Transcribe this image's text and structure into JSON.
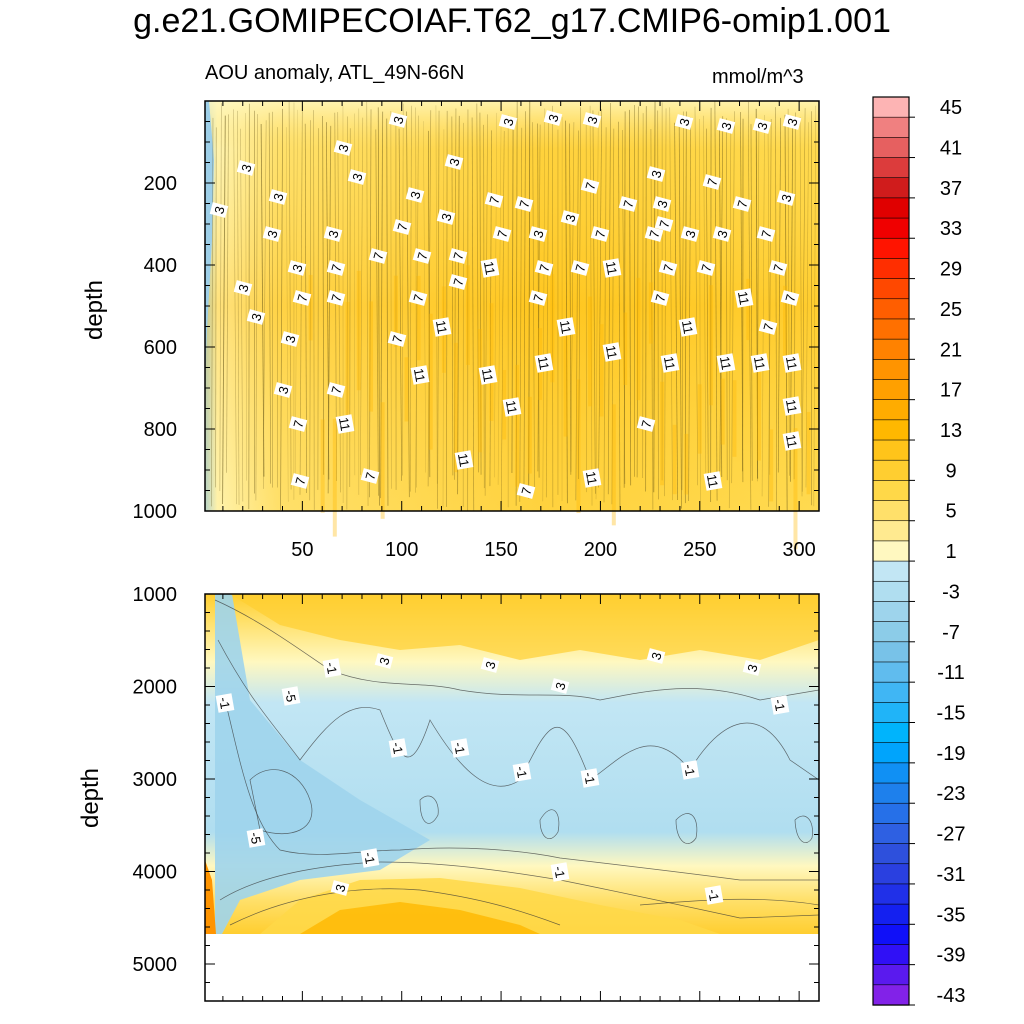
{
  "title": "g.e21.GOMIPECOIAF.T62_g17.CMIP6-omip1.001",
  "subtitle_left": "AOU anomaly, ATL_49N-66N",
  "subtitle_right": "mmol/m^3",
  "chart_data": [
    {
      "type": "heatmap",
      "panel": "upper",
      "ylabel": "depth",
      "xlabel": "",
      "xlim": [
        1,
        310
      ],
      "ylim": [
        1000,
        0
      ],
      "x_ticks": [
        50,
        100,
        150,
        200,
        250,
        300
      ],
      "x_tick_labels": [
        "50",
        "100",
        "150",
        "200",
        "250",
        "300"
      ],
      "y_ticks": [
        200,
        400,
        600,
        800,
        1000
      ],
      "y_tick_labels": [
        "200",
        "400",
        "600",
        "800",
        "1000"
      ],
      "contour_labels": [
        "3",
        "7",
        "11"
      ],
      "typical_values": {
        "near_surface": 3,
        "interior": 7,
        "max": 11,
        "left_edge": -3
      }
    },
    {
      "type": "heatmap",
      "panel": "lower",
      "ylabel": "depth",
      "xlabel": "",
      "xlim": [
        1,
        310
      ],
      "ylim": [
        5400,
        1000
      ],
      "y_ticks": [
        1000,
        2000,
        3000,
        4000,
        5000
      ],
      "y_tick_labels": [
        "1000",
        "2000",
        "3000",
        "4000",
        "5000"
      ],
      "contour_labels": [
        "-5",
        "-1",
        "3"
      ],
      "ocean_floor_depth": 4650,
      "typical_values": {
        "upper_layer": 3,
        "mid_depth": -1,
        "mid_depth_min": -5,
        "deep_layer": 3
      }
    }
  ],
  "colorbar": {
    "levels": [
      45,
      43,
      41,
      39,
      37,
      35,
      33,
      31,
      29,
      27,
      25,
      23,
      21,
      19,
      17,
      15,
      13,
      11,
      9,
      7,
      5,
      3,
      1,
      -1,
      -3,
      -5,
      -7,
      -9,
      -11,
      -13,
      -15,
      -17,
      -19,
      -21,
      -23,
      -25,
      -27,
      -29,
      -31,
      -33,
      -35,
      -37,
      -39,
      -41,
      -43
    ],
    "tick_labels": [
      "45",
      "41",
      "37",
      "33",
      "29",
      "25",
      "21",
      "17",
      "13",
      "9",
      "5",
      "1",
      "-3",
      "-7",
      "-11",
      "-15",
      "-19",
      "-23",
      "-27",
      "-31",
      "-35",
      "-39",
      "-43"
    ],
    "colors": [
      "#fdb4b4",
      "#f08080",
      "#e66060",
      "#dc3c3c",
      "#d01c1c",
      "#e00000",
      "#f00000",
      "#ff1400",
      "#ff2e00",
      "#ff4800",
      "#ff5e00",
      "#ff7000",
      "#ff8200",
      "#ff9400",
      "#ffa000",
      "#ffac00",
      "#ffb800",
      "#ffc41a",
      "#ffce30",
      "#ffd848",
      "#ffe06a",
      "#ffea90",
      "#fff8c0",
      "#c2e6f4",
      "#b0def0",
      "#9ed4ec",
      "#8ccce8",
      "#78c2e8",
      "#60bcee",
      "#40b6f4",
      "#20b4f8",
      "#00b4fc",
      "#00a4fc",
      "#1090f4",
      "#1e80ec",
      "#2670e8",
      "#2e60e2",
      "#2e50dc",
      "#2a40e0",
      "#2030e8",
      "#1420f0",
      "#1010f8",
      "#3010f6",
      "#5a1aee",
      "#8222e8"
    ]
  },
  "upper_labels": [
    {
      "t": "3",
      "x": 398,
      "y": 120
    },
    {
      "t": "3",
      "x": 508,
      "y": 122
    },
    {
      "t": "3",
      "x": 553,
      "y": 118
    },
    {
      "t": "3",
      "x": 592,
      "y": 120
    },
    {
      "t": "3",
      "x": 684,
      "y": 122
    },
    {
      "t": "3",
      "x": 726,
      "y": 126
    },
    {
      "t": "3",
      "x": 762,
      "y": 126
    },
    {
      "t": "3",
      "x": 792,
      "y": 122
    },
    {
      "t": "3",
      "x": 343,
      "y": 148
    },
    {
      "t": "3",
      "x": 454,
      "y": 162
    },
    {
      "t": "3",
      "x": 246,
      "y": 168
    },
    {
      "t": "3",
      "x": 357,
      "y": 177
    },
    {
      "t": "3",
      "x": 656,
      "y": 174
    },
    {
      "t": "7",
      "x": 712,
      "y": 182
    },
    {
      "t": "7",
      "x": 590,
      "y": 186
    },
    {
      "t": "3",
      "x": 278,
      "y": 197
    },
    {
      "t": "3",
      "x": 415,
      "y": 195
    },
    {
      "t": "7",
      "x": 494,
      "y": 200
    },
    {
      "t": "7",
      "x": 524,
      "y": 204
    },
    {
      "t": "7",
      "x": 628,
      "y": 204
    },
    {
      "t": "3",
      "x": 662,
      "y": 204
    },
    {
      "t": "7",
      "x": 742,
      "y": 204
    },
    {
      "t": "3",
      "x": 786,
      "y": 198
    },
    {
      "t": "3",
      "x": 219,
      "y": 210
    },
    {
      "t": "3",
      "x": 446,
      "y": 217
    },
    {
      "t": "3",
      "x": 570,
      "y": 218
    },
    {
      "t": "7",
      "x": 402,
      "y": 227
    },
    {
      "t": "7",
      "x": 664,
      "y": 224
    },
    {
      "t": "3",
      "x": 272,
      "y": 234
    },
    {
      "t": "3",
      "x": 333,
      "y": 234
    },
    {
      "t": "7",
      "x": 502,
      "y": 234
    },
    {
      "t": "3",
      "x": 538,
      "y": 234
    },
    {
      "t": "7",
      "x": 600,
      "y": 234
    },
    {
      "t": "7",
      "x": 654,
      "y": 234
    },
    {
      "t": "3",
      "x": 690,
      "y": 234
    },
    {
      "t": "3",
      "x": 722,
      "y": 234
    },
    {
      "t": "7",
      "x": 766,
      "y": 234
    },
    {
      "t": "7",
      "x": 378,
      "y": 256
    },
    {
      "t": "7",
      "x": 422,
      "y": 256
    },
    {
      "t": "7",
      "x": 458,
      "y": 256
    },
    {
      "t": "3",
      "x": 297,
      "y": 268
    },
    {
      "t": "7",
      "x": 336,
      "y": 268
    },
    {
      "t": "11",
      "x": 490,
      "y": 268
    },
    {
      "t": "7",
      "x": 544,
      "y": 268
    },
    {
      "t": "7",
      "x": 580,
      "y": 268
    },
    {
      "t": "11",
      "x": 612,
      "y": 268
    },
    {
      "t": "7",
      "x": 668,
      "y": 268
    },
    {
      "t": "7",
      "x": 706,
      "y": 268
    },
    {
      "t": "7",
      "x": 778,
      "y": 268
    },
    {
      "t": "7",
      "x": 458,
      "y": 282
    },
    {
      "t": "3",
      "x": 243,
      "y": 288
    },
    {
      "t": "7",
      "x": 302,
      "y": 298
    },
    {
      "t": "7",
      "x": 336,
      "y": 298
    },
    {
      "t": "7",
      "x": 418,
      "y": 298
    },
    {
      "t": "7",
      "x": 538,
      "y": 298
    },
    {
      "t": "7",
      "x": 660,
      "y": 298
    },
    {
      "t": "11",
      "x": 744,
      "y": 298
    },
    {
      "t": "7",
      "x": 790,
      "y": 298
    },
    {
      "t": "3",
      "x": 256,
      "y": 317
    },
    {
      "t": "11",
      "x": 442,
      "y": 327
    },
    {
      "t": "11",
      "x": 566,
      "y": 327
    },
    {
      "t": "11",
      "x": 688,
      "y": 327
    },
    {
      "t": "7",
      "x": 768,
      "y": 327
    },
    {
      "t": "3",
      "x": 290,
      "y": 339
    },
    {
      "t": "7",
      "x": 397,
      "y": 339
    },
    {
      "t": "11",
      "x": 612,
      "y": 352
    },
    {
      "t": "11",
      "x": 544,
      "y": 363
    },
    {
      "t": "11",
      "x": 670,
      "y": 363
    },
    {
      "t": "11",
      "x": 726,
      "y": 363
    },
    {
      "t": "11",
      "x": 760,
      "y": 363
    },
    {
      "t": "11",
      "x": 792,
      "y": 363
    },
    {
      "t": "11",
      "x": 420,
      "y": 375
    },
    {
      "t": "11",
      "x": 488,
      "y": 375
    },
    {
      "t": "3",
      "x": 283,
      "y": 390
    },
    {
      "t": "7",
      "x": 336,
      "y": 390
    },
    {
      "t": "11",
      "x": 512,
      "y": 407
    },
    {
      "t": "11",
      "x": 792,
      "y": 406
    },
    {
      "t": "7",
      "x": 298,
      "y": 424
    },
    {
      "t": "11",
      "x": 345,
      "y": 424
    },
    {
      "t": "7",
      "x": 646,
      "y": 424
    },
    {
      "t": "11",
      "x": 792,
      "y": 441
    },
    {
      "t": "11",
      "x": 464,
      "y": 460
    },
    {
      "t": "7",
      "x": 370,
      "y": 476
    },
    {
      "t": "11",
      "x": 592,
      "y": 478
    },
    {
      "t": "11",
      "x": 713,
      "y": 481
    },
    {
      "t": "7",
      "x": 300,
      "y": 481
    },
    {
      "t": "7",
      "x": 526,
      "y": 491
    }
  ],
  "lower_labels": [
    {
      "t": "-1",
      "x": 332,
      "y": 668
    },
    {
      "t": "3",
      "x": 384,
      "y": 661
    },
    {
      "t": "3",
      "x": 490,
      "y": 665
    },
    {
      "t": "3",
      "x": 656,
      "y": 656
    },
    {
      "t": "3",
      "x": 752,
      "y": 668
    },
    {
      "t": "-1",
      "x": 225,
      "y": 703
    },
    {
      "t": "-5",
      "x": 291,
      "y": 696
    },
    {
      "t": "3",
      "x": 560,
      "y": 686
    },
    {
      "t": "-1",
      "x": 780,
      "y": 705
    },
    {
      "t": "-1",
      "x": 398,
      "y": 748
    },
    {
      "t": "-1",
      "x": 460,
      "y": 748
    },
    {
      "t": "-1",
      "x": 522,
      "y": 772
    },
    {
      "t": "-1",
      "x": 590,
      "y": 778
    },
    {
      "t": "-1",
      "x": 690,
      "y": 770
    },
    {
      "t": "-5",
      "x": 256,
      "y": 838
    },
    {
      "t": "-1",
      "x": 370,
      "y": 858
    },
    {
      "t": "-1",
      "x": 560,
      "y": 872
    },
    {
      "t": "3",
      "x": 340,
      "y": 888
    },
    {
      "t": "-1",
      "x": 714,
      "y": 895
    }
  ]
}
